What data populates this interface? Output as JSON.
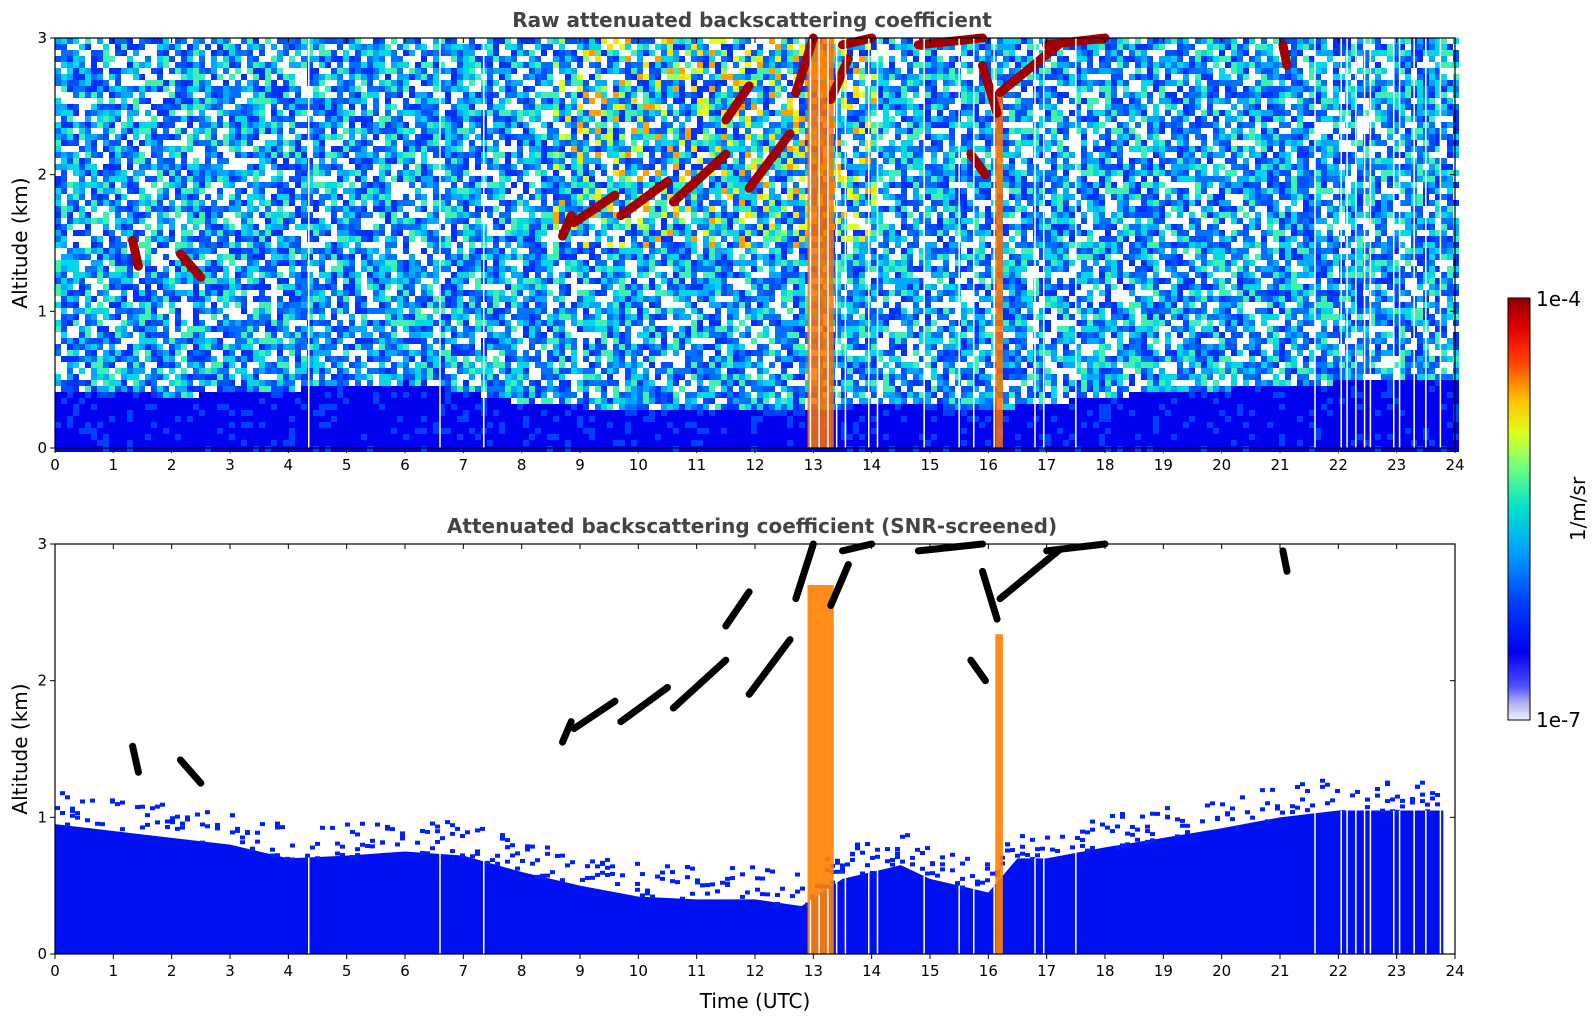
{
  "chart_data": [
    {
      "type": "heatmap",
      "title": "Raw attenuated backscattering coefficient",
      "xlabel": "",
      "ylabel": "Altitude (km)",
      "xlim": [
        0,
        24
      ],
      "ylim": [
        0,
        3
      ],
      "xticks": [
        "0",
        "1",
        "2",
        "3",
        "4",
        "5",
        "6",
        "7",
        "8",
        "9",
        "10",
        "11",
        "12",
        "13",
        "14",
        "15",
        "16",
        "17",
        "18",
        "19",
        "20",
        "21",
        "22",
        "23",
        "24"
      ],
      "yticks": [
        "0",
        "1",
        "2",
        "3"
      ],
      "noise_top_km": 3.0,
      "dense_layer_top_km": [
        [
          0,
          0.45
        ],
        [
          2,
          0.4
        ],
        [
          4,
          0.45
        ],
        [
          6,
          0.5
        ],
        [
          8,
          0.35
        ],
        [
          10,
          0.3
        ],
        [
          12,
          0.3
        ],
        [
          13,
          0.3
        ],
        [
          14,
          0.35
        ],
        [
          16,
          0.3
        ],
        [
          18,
          0.4
        ],
        [
          20,
          0.45
        ],
        [
          22,
          0.5
        ],
        [
          24,
          0.5
        ]
      ],
      "cloud_segments": [
        {
          "t": [
            1.33,
            1.43
          ],
          "alt": [
            1.52,
            1.33
          ]
        },
        {
          "t": [
            2.15,
            2.5
          ],
          "alt": [
            1.42,
            1.25
          ]
        },
        {
          "t": [
            8.7,
            8.85
          ],
          "alt": [
            1.55,
            1.7
          ]
        },
        {
          "t": [
            8.9,
            9.6
          ],
          "alt": [
            1.65,
            1.85
          ]
        },
        {
          "t": [
            9.7,
            10.5
          ],
          "alt": [
            1.7,
            1.95
          ]
        },
        {
          "t": [
            10.6,
            11.5
          ],
          "alt": [
            1.8,
            2.15
          ]
        },
        {
          "t": [
            11.5,
            11.9
          ],
          "alt": [
            2.4,
            2.65
          ]
        },
        {
          "t": [
            11.9,
            12.6
          ],
          "alt": [
            1.9,
            2.3
          ]
        },
        {
          "t": [
            12.7,
            13.0
          ],
          "alt": [
            2.6,
            3.0
          ]
        },
        {
          "t": [
            13.3,
            13.6
          ],
          "alt": [
            2.55,
            2.85
          ]
        },
        {
          "t": [
            13.5,
            14.0
          ],
          "alt": [
            2.95,
            3.0
          ]
        },
        {
          "t": [
            14.8,
            15.9
          ],
          "alt": [
            2.95,
            3.0
          ]
        },
        {
          "t": [
            15.9,
            16.15
          ],
          "alt": [
            2.8,
            2.45
          ]
        },
        {
          "t": [
            16.2,
            17.2
          ],
          "alt": [
            2.6,
            2.95
          ]
        },
        {
          "t": [
            17.0,
            18.0
          ],
          "alt": [
            2.95,
            3.0
          ]
        },
        {
          "t": [
            15.7,
            15.95
          ],
          "alt": [
            2.15,
            2.0
          ]
        },
        {
          "t": [
            21.05,
            21.12
          ],
          "alt": [
            2.95,
            2.8
          ]
        }
      ],
      "precip_columns": [
        {
          "t": [
            12.9,
            13.35
          ],
          "top_km": 3.0
        },
        {
          "t": [
            16.12,
            16.25
          ],
          "top_km": 2.6
        }
      ],
      "data_gaps_h": [
        4.35,
        6.6,
        7.35,
        12.95,
        13.1,
        13.25,
        13.4,
        13.55,
        13.95,
        14.1,
        14.9,
        15.5,
        15.75,
        16.1,
        16.8,
        16.95,
        17.5,
        21.6,
        22.05,
        22.15,
        22.3,
        22.45,
        22.55,
        22.95,
        23.05,
        23.3,
        23.5,
        23.75
      ]
    },
    {
      "type": "heatmap",
      "title": "Attenuated backscattering coefficient (SNR-screened)",
      "xlabel": "Time (UTC)",
      "ylabel": "Altitude (km)",
      "xlim": [
        0,
        24
      ],
      "ylim": [
        0,
        3
      ],
      "xticks": [
        "0",
        "1",
        "2",
        "3",
        "4",
        "5",
        "6",
        "7",
        "8",
        "9",
        "10",
        "11",
        "12",
        "13",
        "14",
        "15",
        "16",
        "17",
        "18",
        "19",
        "20",
        "21",
        "22",
        "23",
        "24"
      ],
      "yticks": [
        "0",
        "1",
        "2",
        "3"
      ],
      "boundary_layer_top_km": [
        [
          0,
          0.95
        ],
        [
          1,
          0.9
        ],
        [
          2,
          0.85
        ],
        [
          3,
          0.8
        ],
        [
          4,
          0.7
        ],
        [
          5,
          0.72
        ],
        [
          6,
          0.75
        ],
        [
          7,
          0.72
        ],
        [
          8,
          0.6
        ],
        [
          9,
          0.5
        ],
        [
          10,
          0.42
        ],
        [
          11,
          0.4
        ],
        [
          12,
          0.4
        ],
        [
          12.8,
          0.35
        ],
        [
          13.5,
          0.55
        ],
        [
          14,
          0.6
        ],
        [
          14.5,
          0.65
        ],
        [
          15,
          0.55
        ],
        [
          15.5,
          0.5
        ],
        [
          16,
          0.45
        ],
        [
          16.5,
          0.7
        ],
        [
          17,
          0.7
        ],
        [
          18,
          0.78
        ],
        [
          19,
          0.85
        ],
        [
          20,
          0.92
        ],
        [
          21,
          1.0
        ],
        [
          22,
          1.05
        ],
        [
          23,
          1.05
        ],
        [
          23.8,
          1.05
        ]
      ]
    }
  ],
  "colorbar": {
    "label": "1/m/sr",
    "max_label": "1e-4",
    "min_label": "1e-7",
    "colors": [
      "#e8e8f8",
      "#a8a8f0",
      "#4040ff",
      "#0000f0",
      "#0050ff",
      "#00a8ff",
      "#00e0e0",
      "#60ff90",
      "#d0ff30",
      "#ffe000",
      "#ff8000",
      "#ff2000",
      "#a00000"
    ]
  }
}
